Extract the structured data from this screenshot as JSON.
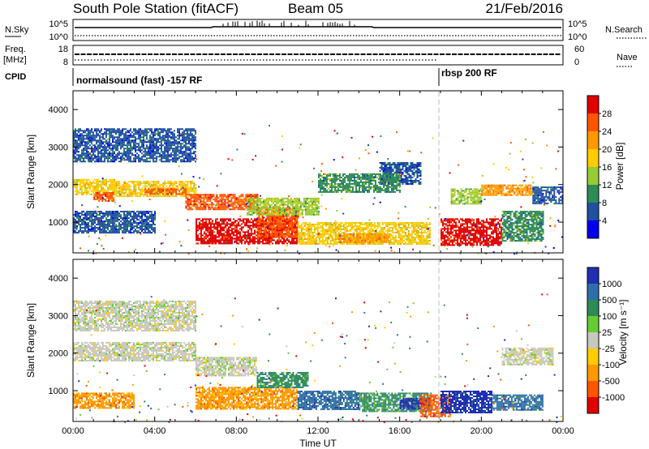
{
  "header": {
    "title": "South Pole Station (fitACF)",
    "beam": "Beam 05",
    "date": "21/Feb/2016"
  },
  "top_panels": {
    "nsky_label": "N.Sky",
    "nsky_ticks": [
      "10^5",
      "10^0"
    ],
    "nsearch_label": "N.Search",
    "nsearch_ticks": [
      "10^5",
      "10^0"
    ],
    "freq_label_1": "Freq.",
    "freq_label_2": "[MHz]",
    "freq_ticks": [
      "18",
      "8"
    ],
    "nave_label": "Nave",
    "nave_ticks": [
      "60",
      "0"
    ],
    "cpid_label": "CPID",
    "cpid_segments": [
      {
        "start_hour": 0,
        "text": "normalsound (fast) -157 RF"
      },
      {
        "start_hour": 18,
        "text": "rbsp 200 RF"
      }
    ]
  },
  "chart_data": [
    {
      "type": "heatmap",
      "name": "power",
      "ylabel": "Slant Range [km]",
      "xlabel": "",
      "xlim": [
        0,
        24
      ],
      "ylim": [
        180,
        4500
      ],
      "yticks": [
        1000,
        2000,
        3000,
        4000
      ],
      "colorbar": {
        "label": "Power [dB]",
        "ticks": [
          "28",
          "24",
          "20",
          "16",
          "12",
          "8",
          "4"
        ],
        "colors": [
          "#e00000",
          "#ff5500",
          "#ff9900",
          "#ffcc00",
          "#99cc33",
          "#2e8b57",
          "#2050a0",
          "#0000ee"
        ]
      },
      "bands": [
        {
          "h0": 0.0,
          "h1": 2.0,
          "r0": 1750,
          "r1": 2150,
          "level": 3
        },
        {
          "h0": 1.0,
          "h1": 2.0,
          "r0": 1550,
          "r1": 1800,
          "level": 1
        },
        {
          "h0": 2.0,
          "h1": 6.0,
          "r0": 1700,
          "r1": 2100,
          "level": 3
        },
        {
          "h0": 3.5,
          "h1": 5.5,
          "r0": 1750,
          "r1": 1900,
          "level": 1
        },
        {
          "h0": 5.5,
          "h1": 9.0,
          "r0": 1350,
          "r1": 1750,
          "level": 1
        },
        {
          "h0": 6.0,
          "h1": 11.0,
          "r0": 450,
          "r1": 1100,
          "level": 0
        },
        {
          "h0": 9.0,
          "h1": 11.0,
          "r0": 600,
          "r1": 1400,
          "level": 1
        },
        {
          "h0": 8.5,
          "h1": 12.0,
          "r0": 1200,
          "r1": 1650,
          "level": 4
        },
        {
          "h0": 11.0,
          "h1": 17.5,
          "r0": 400,
          "r1": 1000,
          "level": 3
        },
        {
          "h0": 13.0,
          "h1": 15.5,
          "r0": 450,
          "r1": 700,
          "level": 2
        },
        {
          "h0": 18.0,
          "h1": 21.0,
          "r0": 400,
          "r1": 1100,
          "level": 0
        },
        {
          "h0": 21.0,
          "h1": 23.0,
          "r0": 500,
          "r1": 1300,
          "level": 5
        },
        {
          "h0": 18.5,
          "h1": 20.0,
          "r0": 1500,
          "r1": 1900,
          "level": 4
        },
        {
          "h0": 20.0,
          "h1": 22.5,
          "r0": 1700,
          "r1": 2000,
          "level": 2
        },
        {
          "h0": 22.5,
          "h1": 24.0,
          "r0": 1500,
          "r1": 1950,
          "level": 6
        },
        {
          "h0": 0.0,
          "h1": 4.0,
          "r0": 700,
          "r1": 1300,
          "level": 6
        },
        {
          "h0": 15.0,
          "h1": 17.0,
          "r0": 2000,
          "r1": 2600,
          "level": 6
        },
        {
          "h0": 0.0,
          "h1": 6.0,
          "r0": 2600,
          "r1": 3500,
          "level": 6
        },
        {
          "h0": 12.0,
          "h1": 16.0,
          "r0": 1800,
          "r1": 2300,
          "level": 5
        }
      ]
    },
    {
      "type": "heatmap",
      "name": "velocity",
      "ylabel": "Slant Range [km]",
      "xlabel": "Time UT",
      "xlim": [
        0,
        24
      ],
      "ylim": [
        180,
        4500
      ],
      "yticks": [
        1000,
        2000,
        3000,
        4000
      ],
      "xticks": [
        "00:00",
        "04:00",
        "08:00",
        "12:00",
        "16:00",
        "20:00",
        "00:00"
      ],
      "colorbar": {
        "label": "Velocity [m s⁻¹]",
        "ticks": [
          "1000",
          "500",
          "100",
          "25",
          "-25",
          "-100",
          "-500",
          "-1000"
        ],
        "colors": [
          "#2030b0",
          "#2e6fa8",
          "#2e8b57",
          "#66cc33",
          "#c8c8c0",
          "#ffcc00",
          "#ff9900",
          "#ff5500",
          "#e00000"
        ]
      },
      "bands": [
        {
          "h0": 0.0,
          "h1": 6.0,
          "r0": 1800,
          "r1": 2300,
          "level": 4
        },
        {
          "h0": 6.0,
          "h1": 9.0,
          "r0": 1400,
          "r1": 1900,
          "level": 4
        },
        {
          "h0": 0.0,
          "h1": 3.0,
          "r0": 550,
          "r1": 950,
          "level": 6
        },
        {
          "h0": 6.0,
          "h1": 11.0,
          "r0": 500,
          "r1": 1100,
          "level": 6
        },
        {
          "h0": 9.0,
          "h1": 11.5,
          "r0": 1100,
          "r1": 1500,
          "level": 2
        },
        {
          "h0": 11.0,
          "h1": 14.0,
          "r0": 500,
          "r1": 1000,
          "level": 1
        },
        {
          "h0": 14.0,
          "h1": 17.5,
          "r0": 450,
          "r1": 950,
          "level": 2
        },
        {
          "h0": 16.0,
          "h1": 17.5,
          "r0": 500,
          "r1": 800,
          "level": 0
        },
        {
          "h0": 17.0,
          "h1": 18.5,
          "r0": 300,
          "r1": 900,
          "level": 7
        },
        {
          "h0": 18.0,
          "h1": 20.5,
          "r0": 400,
          "r1": 1000,
          "level": 0
        },
        {
          "h0": 20.5,
          "h1": 23.0,
          "r0": 500,
          "r1": 900,
          "level": 1
        },
        {
          "h0": 21.0,
          "h1": 23.5,
          "r0": 1700,
          "r1": 2150,
          "level": 4
        },
        {
          "h0": 0.0,
          "h1": 6.0,
          "r0": 2600,
          "r1": 3400,
          "level": 4
        }
      ]
    }
  ]
}
